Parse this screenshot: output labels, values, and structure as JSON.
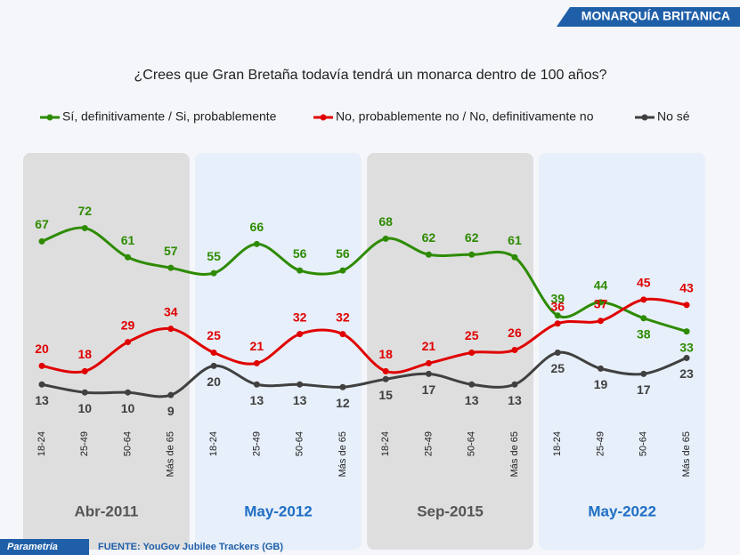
{
  "header": "MONARQUÍA BRITANICA",
  "footer": {
    "brand": "Parametría",
    "source": "FUENTE: YouGov Jubilee Trackers (GB)"
  },
  "chart_data": {
    "type": "line",
    "title": "¿Crees que Gran Bretaña todavía tendrá un monarca dentro de 100 años?",
    "categories": [
      "18-24",
      "25-49",
      "50-64",
      "Más de 65",
      "18-24",
      "25-49",
      "50-64",
      "Más de 65",
      "18-24",
      "25-49",
      "50-64",
      "Más de 65",
      "18-24",
      "25-49",
      "50-64",
      "Más de 65"
    ],
    "groups": [
      "Abr-2011",
      "May-2012",
      "Sep-2015",
      "May-2022"
    ],
    "ylim": [
      0,
      100
    ],
    "series": [
      {
        "name": "Sí, definitivamente / Si, probablemente",
        "color": "#2e8b00",
        "values": [
          67,
          72,
          61,
          57,
          55,
          66,
          56,
          56,
          68,
          62,
          62,
          61,
          39,
          44,
          38,
          33
        ]
      },
      {
        "name": "No, probablemente no / No, definitivamente no",
        "color": "#e00000",
        "values": [
          20,
          18,
          29,
          34,
          25,
          21,
          32,
          32,
          18,
          21,
          25,
          26,
          36,
          37,
          45,
          43
        ]
      },
      {
        "name": "No sé",
        "color": "#404040",
        "values": [
          13,
          10,
          10,
          9,
          20,
          13,
          13,
          12,
          15,
          17,
          13,
          13,
          25,
          19,
          17,
          23
        ]
      }
    ]
  }
}
